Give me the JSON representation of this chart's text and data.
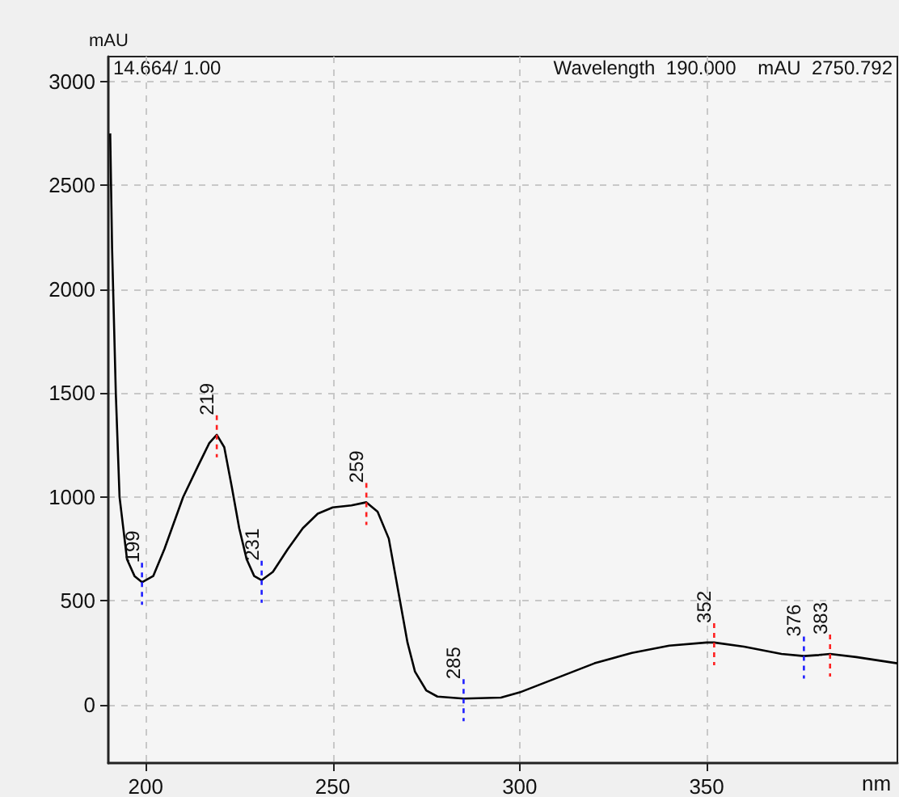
{
  "chart_data": {
    "type": "line",
    "xlabel": "nm",
    "ylabel": "mAU",
    "x": [
      190.5,
      191,
      192,
      193,
      195,
      197,
      199,
      202,
      205,
      210,
      214,
      217,
      219,
      221,
      223,
      225,
      227,
      229,
      231,
      234,
      238,
      242,
      246,
      250,
      255,
      259,
      262,
      265,
      268,
      270,
      272,
      275,
      278,
      285,
      295,
      300,
      310,
      320,
      330,
      340,
      350,
      352,
      360,
      370,
      376,
      380,
      383,
      390,
      401
    ],
    "series": [
      {
        "color": "#000000",
        "values": [
          2750,
          2200,
          1500,
          1000,
          700,
          620,
          590,
          620,
          750,
          1000,
          1150,
          1260,
          1300,
          1240,
          1050,
          850,
          700,
          620,
          600,
          640,
          750,
          850,
          920,
          950,
          960,
          975,
          930,
          800,
          500,
          300,
          160,
          70,
          40,
          30,
          35,
          60,
          130,
          200,
          250,
          285,
          300,
          300,
          280,
          245,
          235,
          240,
          245,
          230,
          200
        ]
      }
    ],
    "xlim": [
      190,
      401
    ],
    "ylim": [
      -280,
      3120
    ],
    "xticks": [
      200,
      250,
      300,
      350
    ],
    "yticks": [
      0,
      500,
      1000,
      1500,
      2000,
      2500,
      3000
    ],
    "grid": true,
    "marker": "none",
    "line_style": "solid",
    "annotations": [
      "14.664/ 1.00",
      "Wavelength  190.000    mAU  2750.792",
      {
        "text": "199",
        "x": 199,
        "y": 590
      },
      {
        "text": "219",
        "x": 219,
        "y": 1300
      },
      {
        "text": "231",
        "x": 231,
        "y": 600
      },
      {
        "text": "259",
        "x": 259,
        "y": 975
      },
      {
        "text": "285",
        "x": 285,
        "y": 30
      },
      {
        "text": "352",
        "x": 352,
        "y": 300
      },
      {
        "text": "376",
        "x": 376,
        "y": 235
      },
      {
        "text": "383",
        "x": 383,
        "y": 245
      }
    ]
  }
}
